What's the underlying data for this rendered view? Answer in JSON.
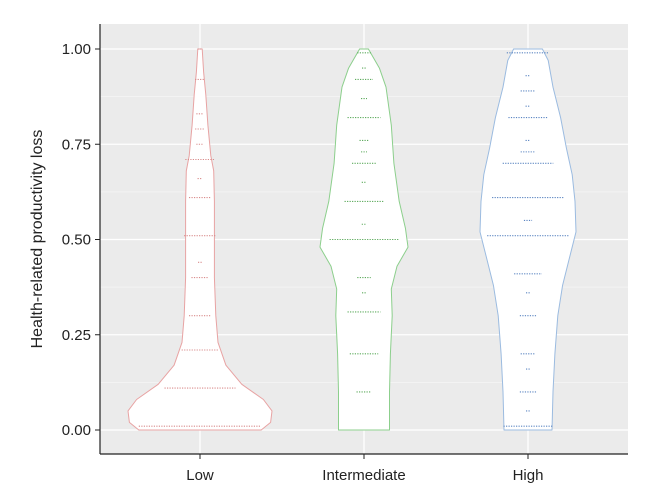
{
  "chart_data": {
    "type": "violin",
    "title": "",
    "xlabel": "",
    "ylabel": "Health-related productivity loss",
    "ylim": [
      0,
      1
    ],
    "yticks": [
      "0.00",
      "0.25",
      "0.50",
      "0.75",
      "1.00"
    ],
    "y_tick_values": [
      0,
      0.25,
      0.5,
      0.75,
      1.0
    ],
    "grid": true,
    "legend": "none",
    "categories": [
      "Low",
      "Intermediate",
      "High"
    ],
    "series": [
      {
        "category": "Low",
        "color": "#e8a3a3",
        "dot_color": "#d98c8c",
        "profile": [
          [
            0.0,
            0.85
          ],
          [
            0.02,
            0.98
          ],
          [
            0.05,
            1.0
          ],
          [
            0.08,
            0.88
          ],
          [
            0.12,
            0.58
          ],
          [
            0.17,
            0.36
          ],
          [
            0.23,
            0.25
          ],
          [
            0.3,
            0.22
          ],
          [
            0.4,
            0.2
          ],
          [
            0.5,
            0.2
          ],
          [
            0.6,
            0.2
          ],
          [
            0.68,
            0.19
          ],
          [
            0.72,
            0.15
          ],
          [
            0.8,
            0.11
          ],
          [
            0.88,
            0.08
          ],
          [
            0.94,
            0.05
          ],
          [
            1.0,
            0.03
          ]
        ],
        "levels": [
          [
            0.01,
            1.0
          ],
          [
            0.11,
            0.58
          ],
          [
            0.21,
            0.3
          ],
          [
            0.3,
            0.18
          ],
          [
            0.4,
            0.14
          ],
          [
            0.44,
            0.02
          ],
          [
            0.51,
            0.26
          ],
          [
            0.61,
            0.18
          ],
          [
            0.66,
            0.04
          ],
          [
            0.71,
            0.24
          ],
          [
            0.75,
            0.06
          ],
          [
            0.79,
            0.08
          ],
          [
            0.83,
            0.06
          ],
          [
            0.92,
            0.08
          ],
          [
            1.0,
            0.04
          ]
        ]
      },
      {
        "category": "Intermediate",
        "color": "#8ccf8c",
        "dot_color": "#5caa5c",
        "profile": [
          [
            0.0,
            0.58
          ],
          [
            0.1,
            0.58
          ],
          [
            0.2,
            0.6
          ],
          [
            0.3,
            0.64
          ],
          [
            0.37,
            0.62
          ],
          [
            0.43,
            0.75
          ],
          [
            0.48,
            1.0
          ],
          [
            0.53,
            0.94
          ],
          [
            0.6,
            0.8
          ],
          [
            0.7,
            0.68
          ],
          [
            0.8,
            0.62
          ],
          [
            0.9,
            0.5
          ],
          [
            0.95,
            0.35
          ],
          [
            1.0,
            0.1
          ]
        ],
        "levels": [
          [
            0.1,
            0.2
          ],
          [
            0.2,
            0.38
          ],
          [
            0.31,
            0.44
          ],
          [
            0.36,
            0.04
          ],
          [
            0.4,
            0.18
          ],
          [
            0.5,
            0.92
          ],
          [
            0.54,
            0.06
          ],
          [
            0.6,
            0.52
          ],
          [
            0.65,
            0.06
          ],
          [
            0.7,
            0.32
          ],
          [
            0.73,
            0.08
          ],
          [
            0.76,
            0.12
          ],
          [
            0.82,
            0.44
          ],
          [
            0.87,
            0.08
          ],
          [
            0.92,
            0.24
          ],
          [
            0.95,
            0.04
          ],
          [
            0.99,
            0.18
          ]
        ]
      },
      {
        "category": "High",
        "color": "#9bbbe0",
        "dot_color": "#5c86c2",
        "profile": [
          [
            0.0,
            0.5
          ],
          [
            0.1,
            0.52
          ],
          [
            0.2,
            0.56
          ],
          [
            0.3,
            0.62
          ],
          [
            0.38,
            0.72
          ],
          [
            0.45,
            0.86
          ],
          [
            0.52,
            1.0
          ],
          [
            0.6,
            0.98
          ],
          [
            0.67,
            0.92
          ],
          [
            0.74,
            0.8
          ],
          [
            0.82,
            0.68
          ],
          [
            0.9,
            0.52
          ],
          [
            0.97,
            0.42
          ],
          [
            1.0,
            0.3
          ]
        ],
        "levels": [
          [
            0.01,
            0.6
          ],
          [
            0.05,
            0.02
          ],
          [
            0.1,
            0.2
          ],
          [
            0.16,
            0.04
          ],
          [
            0.2,
            0.18
          ],
          [
            0.3,
            0.2
          ],
          [
            0.36,
            0.04
          ],
          [
            0.41,
            0.34
          ],
          [
            0.51,
            1.0
          ],
          [
            0.55,
            0.1
          ],
          [
            0.61,
            0.88
          ],
          [
            0.7,
            0.62
          ],
          [
            0.73,
            0.18
          ],
          [
            0.76,
            0.06
          ],
          [
            0.82,
            0.48
          ],
          [
            0.85,
            0.06
          ],
          [
            0.89,
            0.18
          ],
          [
            0.93,
            0.06
          ],
          [
            0.99,
            0.52
          ]
        ]
      }
    ]
  }
}
